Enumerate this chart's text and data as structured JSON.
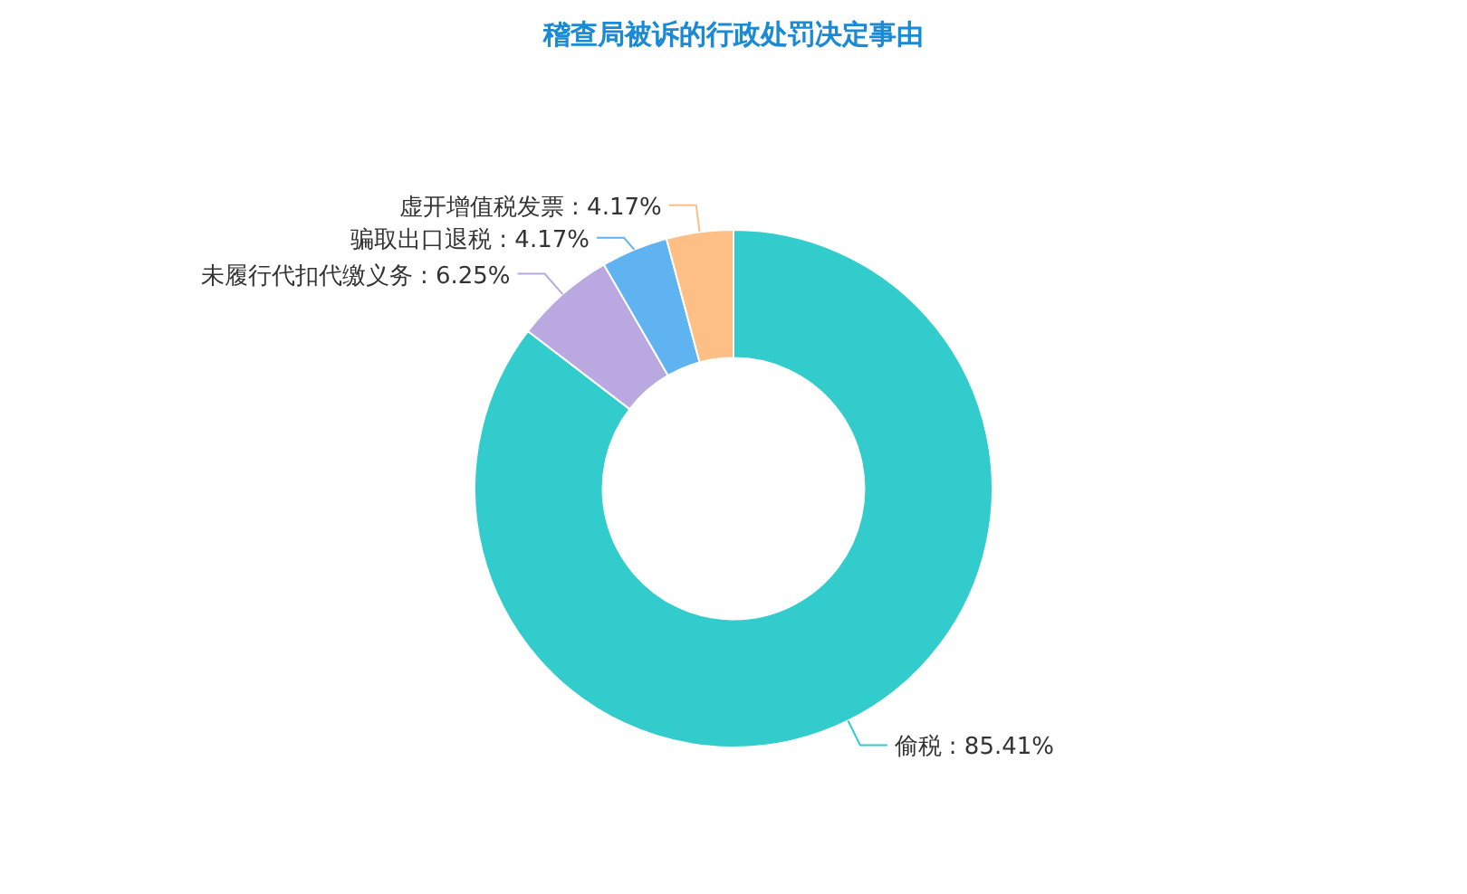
{
  "chart_data": {
    "type": "donut",
    "title": "稽查局被诉的行政处罚决定事由",
    "categories": [
      "偷税",
      "未履行代扣代缴义务",
      "骗取出口退税",
      "虚开增值税发票"
    ],
    "values": [
      85.41,
      6.25,
      4.17,
      4.17
    ],
    "colors": [
      "#33cccc",
      "#b9a9e0",
      "#5eb3f0",
      "#fdbf86"
    ],
    "value_labels": [
      ": 85.41%",
      ": 6.25%",
      ": 4.17%",
      ": 4.17%"
    ]
  }
}
